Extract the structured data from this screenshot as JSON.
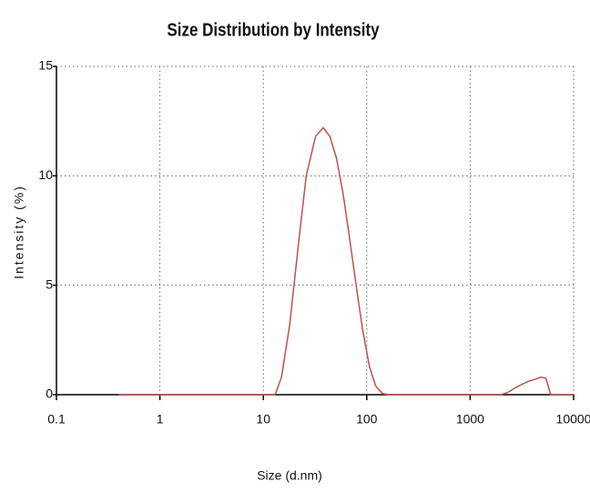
{
  "chart_data": {
    "type": "line",
    "title": "Size Distribution by Intensity",
    "x_label": "Size (d.nm)",
    "y_label": "Intensity (%)",
    "x_scale": "log",
    "grid": true,
    "x": [
      0.4,
      1,
      5,
      10,
      13,
      15,
      18,
      22,
      26,
      32,
      38,
      44,
      51,
      59,
      68,
      79,
      91,
      106,
      122,
      142,
      164,
      300,
      1000,
      1500,
      1990,
      2300,
      2700,
      3100,
      3600,
      4200,
      4800,
      5400,
      6000,
      7000,
      10000
    ],
    "series": [
      {
        "name": "Intensity",
        "color": "#c0504d",
        "values": [
          0,
          0,
          0,
          0,
          0,
          0.8,
          3.2,
          7,
          10,
          11.8,
          12.2,
          11.8,
          10.8,
          9.2,
          7.2,
          5,
          3,
          1.3,
          0.4,
          0.05,
          0,
          0,
          0,
          0,
          0,
          0.1,
          0.3,
          0.45,
          0.6,
          0.7,
          0.8,
          0.75,
          0,
          0,
          0
        ]
      }
    ],
    "xlim": [
      0.1,
      10000
    ],
    "xticks": [
      0.1,
      1,
      10,
      100,
      1000,
      10000
    ],
    "ylim": [
      0,
      15
    ],
    "yticks": [
      0,
      5,
      10,
      15
    ]
  }
}
